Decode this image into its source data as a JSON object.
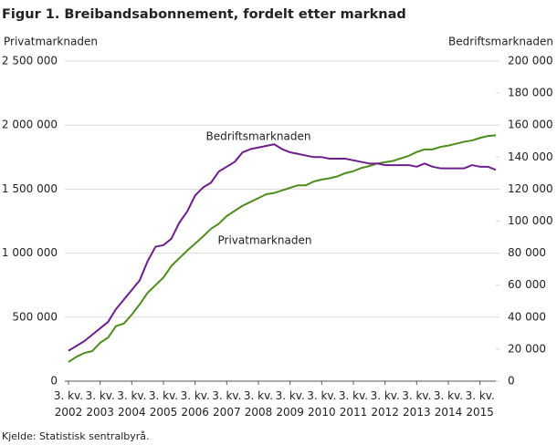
{
  "chart_data": {
    "type": "line",
    "title": "Figur 1. Breibandsabonnement, fordelt etter marknad",
    "ylabel": "Privatmarknaden",
    "y2label": "Bedriftsmarknaden",
    "source": "Kjelde: Statistisk sentralbyrå.",
    "annotations": [
      "Bedriftsmarknaden",
      "Privatmarknaden"
    ],
    "categories": [
      "3. kv. 2002",
      null,
      null,
      null,
      "3. kv. 2003",
      null,
      null,
      null,
      "3. kv. 2004",
      null,
      null,
      null,
      "3. kv. 2005",
      null,
      null,
      null,
      "3. kv. 2006",
      null,
      null,
      null,
      "3. kv. 2007",
      null,
      null,
      null,
      "3. kv. 2008",
      null,
      null,
      null,
      "3. kv. 2009",
      null,
      null,
      null,
      "3. kv. 2010",
      null,
      null,
      null,
      "3. kv. 2011",
      null,
      null,
      null,
      "3. kv. 2012",
      null,
      null,
      null,
      "3. kv. 2013",
      null,
      null,
      null,
      "3. kv. 2014",
      null,
      null,
      null,
      "3. kv. 2015",
      null,
      null
    ],
    "series": [
      {
        "name": "Privatmarknaden",
        "color": "#4e8c1d",
        "axis": "y",
        "values": [
          150000,
          190000,
          220000,
          235000,
          300000,
          340000,
          430000,
          450000,
          520000,
          600000,
          690000,
          750000,
          810000,
          900000,
          960000,
          1020000,
          1075000,
          1130000,
          1190000,
          1230000,
          1290000,
          1330000,
          1370000,
          1400000,
          1430000,
          1460000,
          1470000,
          1490000,
          1510000,
          1530000,
          1530000,
          1560000,
          1575000,
          1585000,
          1600000,
          1625000,
          1640000,
          1665000,
          1680000,
          1700000,
          1710000,
          1720000,
          1740000,
          1760000,
          1790000,
          1810000,
          1810000,
          1830000,
          1840000,
          1855000,
          1870000,
          1880000,
          1900000,
          1915000,
          1920000
        ]
      },
      {
        "name": "Bedriftsmarknaden",
        "color": "#6e1f8c",
        "axis": "y2",
        "values": [
          19000,
          22000,
          25000,
          29000,
          33000,
          37000,
          45000,
          51000,
          57000,
          63000,
          75000,
          84000,
          85000,
          89000,
          99000,
          106000,
          116000,
          121000,
          124000,
          131000,
          134000,
          137000,
          143000,
          145000,
          146000,
          147000,
          148000,
          145000,
          143000,
          142000,
          141000,
          140000,
          140000,
          139000,
          139000,
          139000,
          138000,
          137000,
          136000,
          136000,
          135000,
          135000,
          135000,
          135000,
          134000,
          136000,
          134000,
          133000,
          133000,
          133000,
          133000,
          135000,
          134000,
          134000,
          132000
        ]
      }
    ],
    "ylim": [
      0,
      2500000
    ],
    "yticks": [
      0,
      {
        "value": 500000,
        "label": "500 000"
      },
      {
        "value": 1000000,
        "label": "1 000 000"
      },
      {
        "value": 1500000,
        "label": "1 500 000"
      },
      {
        "value": 2000000,
        "label": "2 000 000"
      },
      {
        "value": 2500000,
        "label": "2 500 000"
      }
    ],
    "y2lim": [
      0,
      200000
    ],
    "y2ticks": [
      0,
      {
        "value": 20000,
        "label": "20 000"
      },
      {
        "value": 40000,
        "label": "40 000"
      },
      {
        "value": 60000,
        "label": "60 000"
      },
      {
        "value": 80000,
        "label": "80 000"
      },
      {
        "value": 100000,
        "label": "100 000"
      },
      {
        "value": 120000,
        "label": "120 000"
      },
      {
        "value": 140000,
        "label": "140 000"
      },
      {
        "value": 160000,
        "label": "160 000"
      },
      {
        "value": 180000,
        "label": "180 000"
      },
      {
        "value": 200000,
        "label": "200 000"
      }
    ],
    "grid": true
  }
}
